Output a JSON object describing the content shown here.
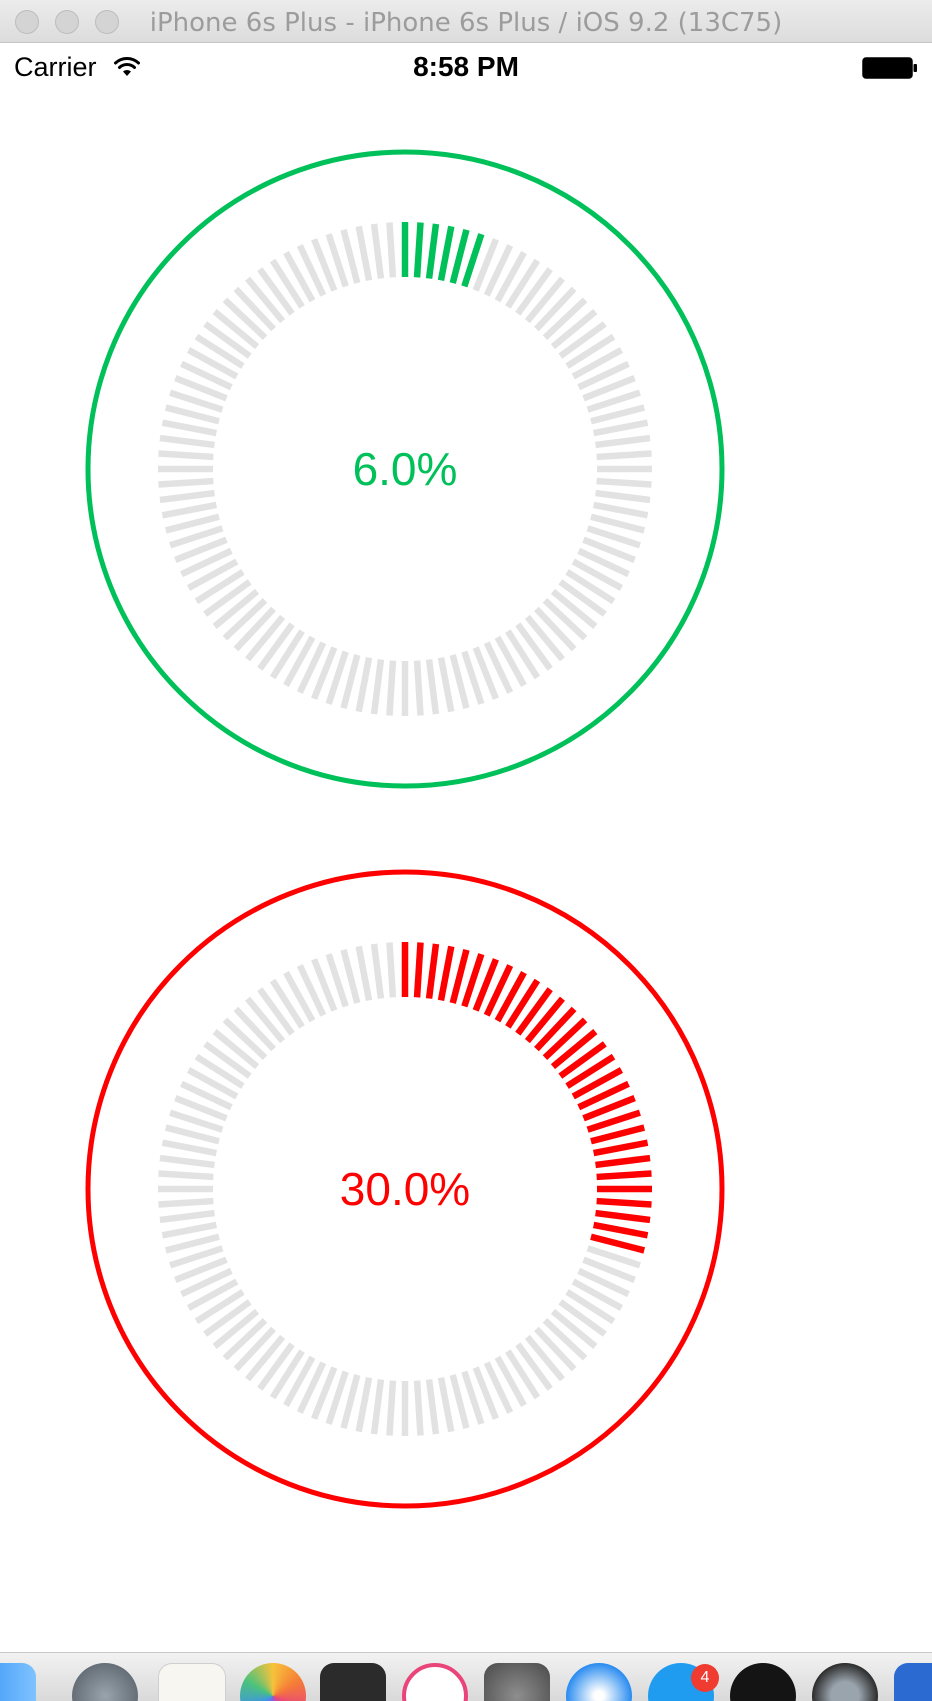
{
  "window": {
    "title": "iPhone 6s Plus - iPhone 6s Plus / iOS 9.2 (13C75)"
  },
  "status_bar": {
    "carrier": "Carrier",
    "time": "8:58 PM",
    "icons": [
      "wifi-icon",
      "battery-icon"
    ]
  },
  "gauges": [
    {
      "label": "6.0%",
      "progress": 0.06,
      "color": "#00c05a",
      "track_color": "#e2e2e2"
    },
    {
      "label": "30.0%",
      "progress": 0.3,
      "color": "#ff0000",
      "track_color": "#e2e2e2"
    }
  ],
  "dock": {
    "icons": [
      "finder-icon",
      "launchpad-icon",
      "notes-icon",
      "photos-icon",
      "preview-icon",
      "itunes-icon",
      "system-preferences-icon",
      "safari-icon",
      "app-store-icon",
      "qq-icon",
      "quicktime-icon",
      "word-icon"
    ],
    "badges": {
      "app_store": "4"
    }
  }
}
